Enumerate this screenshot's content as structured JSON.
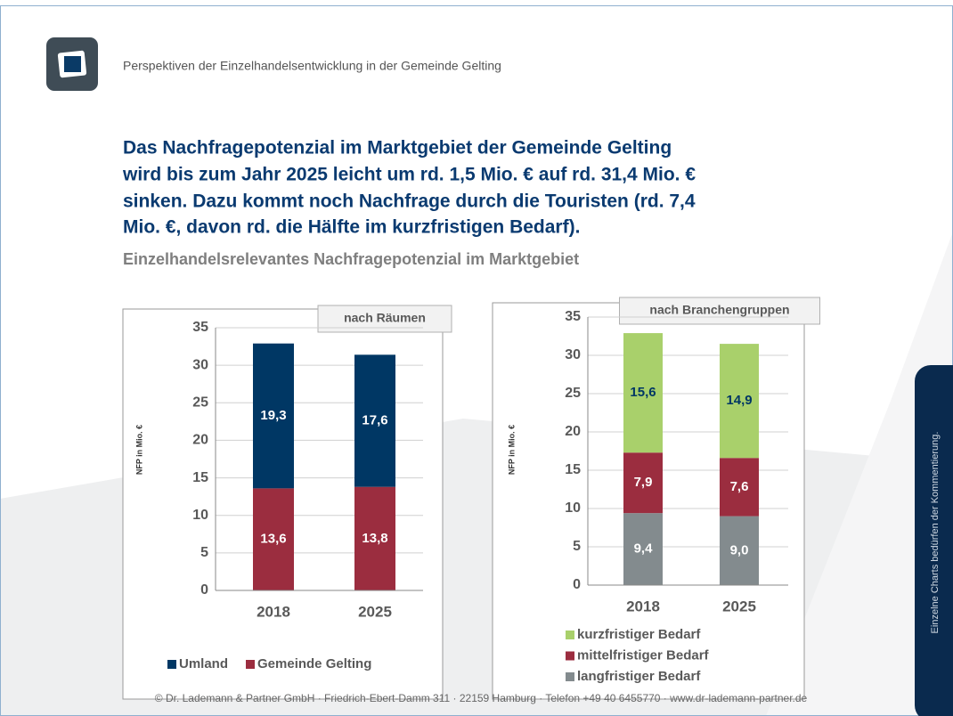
{
  "header": {
    "subtitle": "Perspektiven der Einzelhandelsentwicklung in der Gemeinde Gelting"
  },
  "headline": [
    "Das Nachfragepotenzial im Marktgebiet der Gemeinde Gelting",
    "wird bis zum Jahr 2025 leicht um rd. 1,5 Mio. € auf rd. 31,4 Mio. €",
    "sinken. Dazu kommt noch Nachfrage durch die Touristen (rd. 7,4",
    "Mio. €, davon rd. die Hälfte im kurzfristigen Bedarf)."
  ],
  "section_title": "Einzelhandelsrelevantes Nachfragepotenzial im Marktgebiet",
  "footer": "© Dr. Lademann & Partner GmbH · Friedrich-Ebert-Damm 311 · 22159 Hamburg · Telefon +49 40 6455770 · www.dr-lademann-partner.de",
  "side_note": "Einzelne Charts bedürfen der Kommentierung.",
  "chart_data": [
    {
      "type": "stacked_bar",
      "title": "nach Räumen",
      "ylabel": "NFP in Mio. €",
      "categories": [
        "2018",
        "2025"
      ],
      "ylim": [
        0,
        35
      ],
      "yticks": [
        0,
        5,
        10,
        15,
        20,
        25,
        30,
        35
      ],
      "grid": true,
      "legend": "bottom-row",
      "series": [
        {
          "name": "Umland",
          "color": "#003764",
          "label_color": "#ffffff",
          "values": [
            19.3,
            17.6
          ],
          "value_labels": [
            "19,3",
            "17,6"
          ]
        },
        {
          "name": "Gemeinde Gelting",
          "color": "#9b2d3f",
          "label_color": "#ffffff",
          "values": [
            13.6,
            13.8
          ],
          "value_labels": [
            "13,6",
            "13,8"
          ]
        }
      ]
    },
    {
      "type": "stacked_bar",
      "title": "nach Branchengruppen",
      "ylabel": "NFP in Mio. €",
      "categories": [
        "2018",
        "2025"
      ],
      "ylim": [
        0,
        35
      ],
      "yticks": [
        0,
        5,
        10,
        15,
        20,
        25,
        30,
        35
      ],
      "grid": true,
      "legend": "bottom-column",
      "series": [
        {
          "name": "kurzfristiger Bedarf",
          "color": "#a9d06b",
          "label_color": "#003764",
          "values": [
            15.6,
            14.9
          ],
          "value_labels": [
            "15,6",
            "14,9"
          ]
        },
        {
          "name": "mittelfristiger Bedarf",
          "color": "#9b2d3f",
          "label_color": "#ffffff",
          "values": [
            7.9,
            7.6
          ],
          "value_labels": [
            "7,9",
            "7,6"
          ]
        },
        {
          "name": "langfristiger Bedarf",
          "color": "#838b8e",
          "label_color": "#ffffff",
          "values": [
            9.4,
            9.0
          ],
          "value_labels": [
            "9,4",
            "9,0"
          ]
        }
      ]
    }
  ]
}
